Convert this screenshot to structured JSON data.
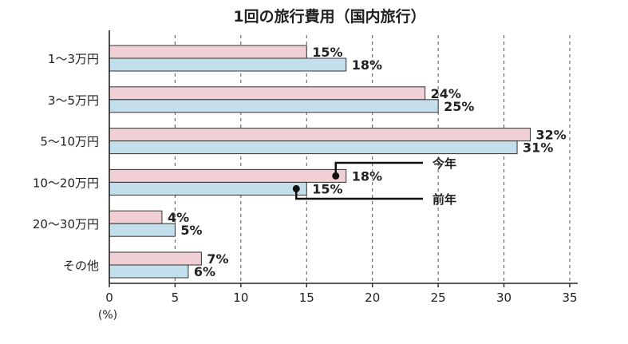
{
  "chart_data": {
    "type": "bar",
    "orientation": "horizontal",
    "title": "1回の旅行費用（国内旅行）",
    "categories": [
      "1〜3万円",
      "3〜5万円",
      "5〜10万円",
      "10〜20万円",
      "20〜30万円",
      "その他"
    ],
    "series": [
      {
        "name": "今年",
        "values": [
          15,
          24,
          32,
          18,
          4,
          7
        ],
        "color": "#f0cfd5"
      },
      {
        "name": "前年",
        "values": [
          18,
          25,
          31,
          15,
          5,
          6
        ],
        "color": "#c4dfec"
      }
    ],
    "data_labels": [
      [
        "15%",
        "24%",
        "32%",
        "18%",
        "4%",
        "7%"
      ],
      [
        "18%",
        "25%",
        "31%",
        "15%",
        "5%",
        "6%"
      ]
    ],
    "xlim": [
      0,
      35
    ],
    "x_ticks": [
      0,
      5,
      10,
      15,
      20,
      25,
      30,
      35
    ],
    "x_tick_labels": [
      "0",
      "5",
      "10",
      "15",
      "20",
      "25",
      "30",
      "35"
    ],
    "x_unit": "(%)",
    "grid": "vertical dashed",
    "legend": "callouts on 10〜20万円 bars"
  }
}
